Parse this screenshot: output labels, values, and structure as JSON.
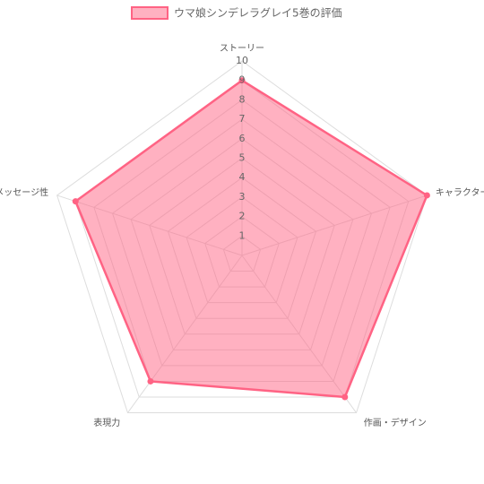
{
  "chart_data": {
    "type": "radar",
    "categories": [
      "ストーリー",
      "キャラクター",
      "作画・デザイン",
      "表現力",
      "メッセージ性"
    ],
    "series": [
      {
        "name": "ウマ娘シンデレラグレイ5巻の評価",
        "color": "#ff6384",
        "values": [
          9,
          10,
          9,
          8,
          9
        ]
      }
    ],
    "rlim": [
      0,
      10
    ],
    "rticks": [
      1,
      2,
      3,
      4,
      5,
      6,
      7,
      8,
      9,
      10
    ],
    "grid": true
  }
}
